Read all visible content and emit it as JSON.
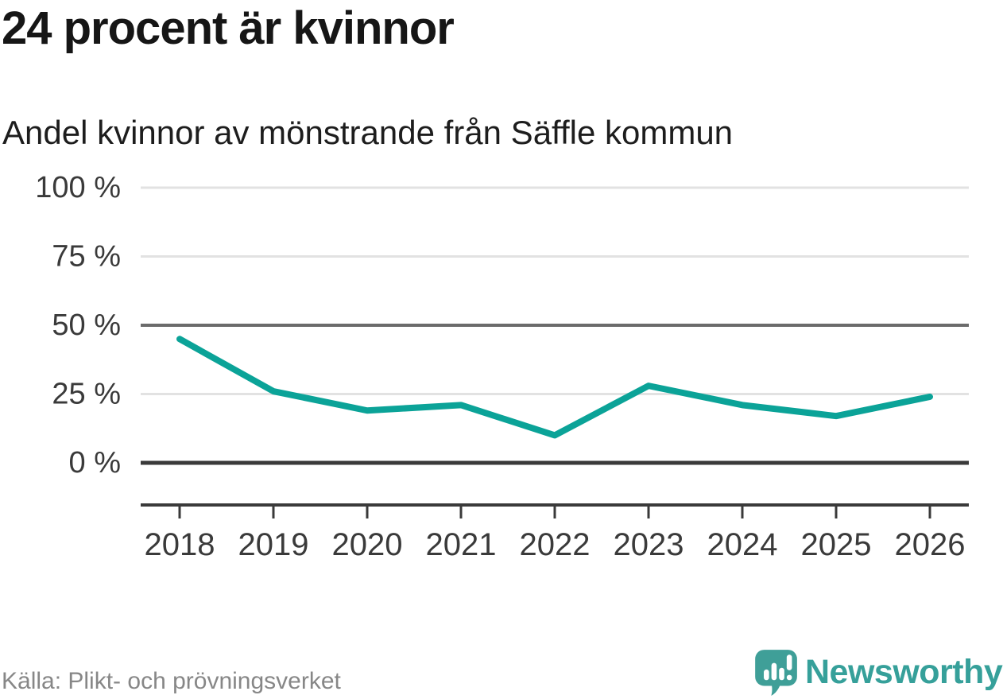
{
  "header": {
    "title": "24 procent är kvinnor",
    "subtitle": "Andel kvinnor av mönstrande från Säffle kommun"
  },
  "chart_data": {
    "type": "line",
    "categories": [
      "2018",
      "2019",
      "2020",
      "2021",
      "2022",
      "2023",
      "2024",
      "2025",
      "2026"
    ],
    "values": [
      45,
      26,
      19,
      21,
      10,
      28,
      21,
      17,
      24
    ],
    "title": "24 procent är kvinnor",
    "subtitle": "Andel kvinnor av mönstrande från Säffle kommun",
    "xlabel": "",
    "ylabel": "",
    "ylim": [
      0,
      100
    ],
    "yticks": [
      0,
      25,
      50,
      75,
      100
    ],
    "ytick_labels": [
      "0 %",
      "25 %",
      "50 %",
      "75 %",
      "100 %"
    ],
    "grid": "horizontal",
    "legend": "none",
    "emphasized_gridline": 50,
    "baseline_gridline": 0
  },
  "footer": {
    "source": "Källa: Plikt- och prövningsverket",
    "brand": "Newsworthy"
  },
  "colors": {
    "line": "#0ba398",
    "grid_light": "#e2e2e2",
    "grid_dark": "#6b6b6b",
    "axis": "#3a3a3a",
    "tick_text": "#3a3a3a",
    "title_text": "#161616",
    "source_text": "#878787",
    "brand_teal": "#36a09a",
    "brand_icon_teal": "#3f9f98"
  }
}
